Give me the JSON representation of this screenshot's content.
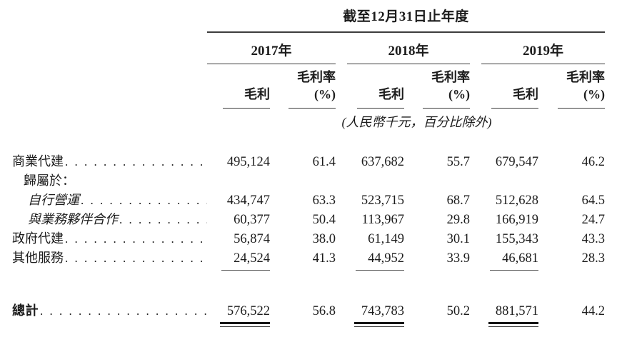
{
  "table": {
    "title": "截至12月31日止年度",
    "note": "(人民幣千元，百分比除外)",
    "year_groups": [
      {
        "year": "2017年"
      },
      {
        "year": "2018年"
      },
      {
        "year": "2019年"
      }
    ],
    "column_headers": {
      "gross_profit": "毛利",
      "gross_margin_line1": "毛利率",
      "gross_margin_line2": "(%)"
    },
    "rows": [
      {
        "label": "商業代建",
        "indent": 0,
        "italic": false,
        "bold": false,
        "leader": true,
        "values": [
          "495,124",
          "61.4",
          "637,682",
          "55.7",
          "679,547",
          "46.2"
        ]
      },
      {
        "label": "歸屬於：",
        "indent": 1,
        "italic": false,
        "bold": false,
        "leader": false,
        "values": null
      },
      {
        "label": "自行營運",
        "indent": 2,
        "italic": true,
        "bold": false,
        "leader": true,
        "values": [
          "434,747",
          "63.3",
          "523,715",
          "68.7",
          "512,628",
          "64.5"
        ]
      },
      {
        "label": "與業務夥伴合作",
        "indent": 2,
        "italic": true,
        "bold": false,
        "leader": true,
        "values": [
          "60,377",
          "50.4",
          "113,967",
          "29.8",
          "166,919",
          "24.7"
        ]
      },
      {
        "label": "政府代建",
        "indent": 0,
        "italic": false,
        "bold": false,
        "leader": true,
        "values": [
          "56,874",
          "38.0",
          "61,149",
          "30.1",
          "155,343",
          "43.3"
        ]
      },
      {
        "label": "其他服務",
        "indent": 0,
        "italic": false,
        "bold": false,
        "leader": true,
        "values": [
          "24,524",
          "41.3",
          "44,952",
          "33.9",
          "46,681",
          "28.3"
        ],
        "value_underline": "single"
      },
      {
        "label": "總計",
        "indent": 0,
        "italic": false,
        "bold": true,
        "leader": true,
        "gap_before": true,
        "values": [
          "576,522",
          "56.8",
          "743,783",
          "50.2",
          "881,571",
          "44.2"
        ],
        "value_underline": "double"
      }
    ]
  }
}
